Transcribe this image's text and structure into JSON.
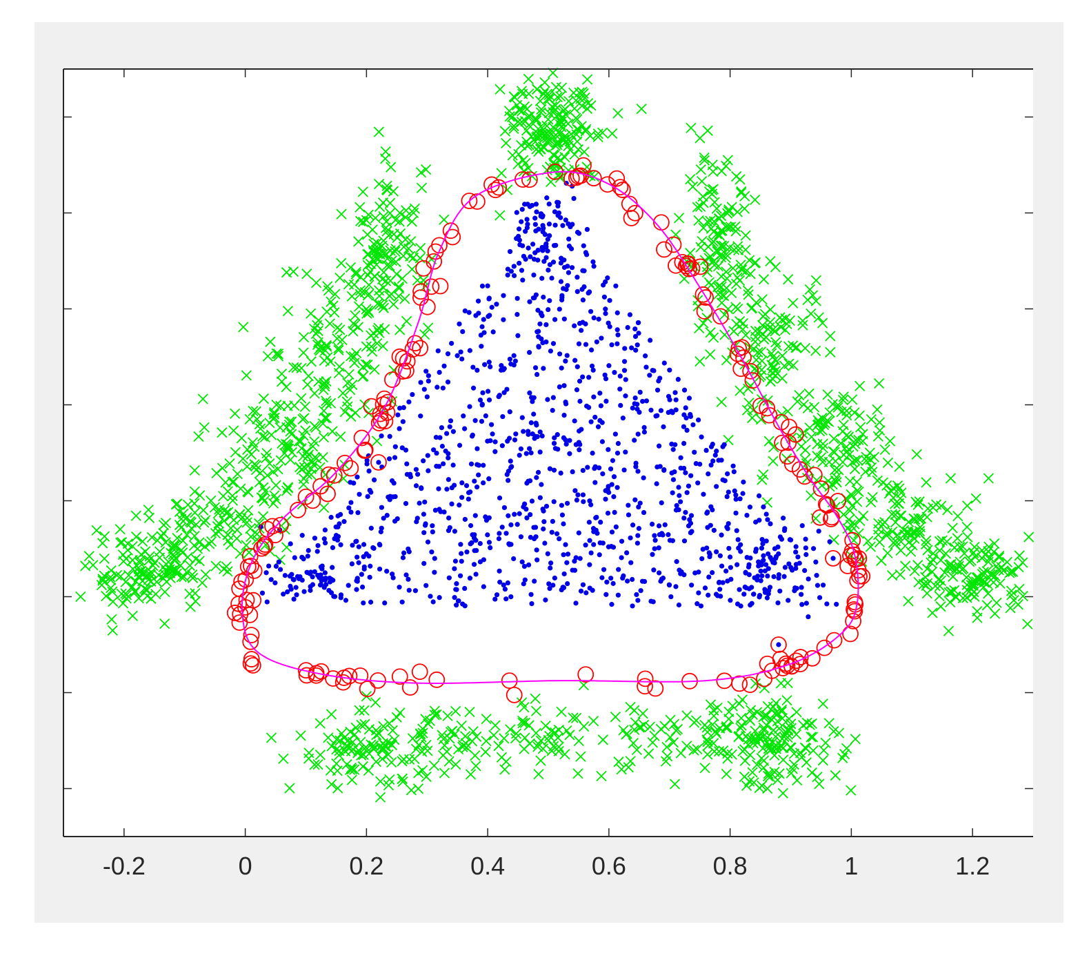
{
  "chart_data": {
    "type": "scatter",
    "title": "",
    "xlabel": "",
    "ylabel": "",
    "xlim": [
      -0.3,
      1.3
    ],
    "ylim": [
      -0.4,
      1.2
    ],
    "x_ticks": [
      -0.2,
      0,
      0.2,
      0.4,
      0.6,
      0.8,
      1,
      1.2
    ],
    "x_tick_labels": [
      "-0.2",
      "0",
      "0.2",
      "0.4",
      "0.6",
      "0.8",
      "1",
      "1.2"
    ],
    "y_ticks": [
      -0.3,
      -0.1,
      0.1,
      0.3,
      0.5,
      0.7,
      0.9,
      1.1
    ],
    "y_tick_labels": [],
    "grid": false,
    "legend": "none",
    "colors": {
      "outlier_marker": "#00e600",
      "inlier_marker": "#0000e6",
      "support_vector_circle": "#ff0000",
      "boundary": "#ff00ff",
      "axes": "#262626",
      "plot_background": "#ffffff",
      "figure_background": "#f0f0f0"
    },
    "series": [
      {
        "marker": "x",
        "color": "#00e600",
        "clusters": [
          {
            "center": [
              0.51,
              1.08
            ],
            "spread": [
              0.045,
              0.06
            ],
            "n": 180
          },
          {
            "center": [
              0.24,
              0.82
            ],
            "spread": [
              0.03,
              0.09
            ],
            "n": 130
          },
          {
            "center": [
              0.15,
              0.62
            ],
            "spread": [
              0.045,
              0.08
            ],
            "n": 110
          },
          {
            "center": [
              0.06,
              0.42
            ],
            "spread": [
              0.05,
              0.07
            ],
            "n": 120
          },
          {
            "center": [
              -0.04,
              0.26
            ],
            "spread": [
              0.055,
              0.05
            ],
            "n": 100
          },
          {
            "center": [
              -0.16,
              0.15
            ],
            "spread": [
              0.05,
              0.04
            ],
            "n": 130
          },
          {
            "center": [
              0.78,
              0.82
            ],
            "spread": [
              0.03,
              0.09
            ],
            "n": 130
          },
          {
            "center": [
              0.87,
              0.62
            ],
            "spread": [
              0.045,
              0.08
            ],
            "n": 110
          },
          {
            "center": [
              0.98,
              0.42
            ],
            "spread": [
              0.05,
              0.07
            ],
            "n": 120
          },
          {
            "center": [
              1.09,
              0.26
            ],
            "spread": [
              0.055,
              0.05
            ],
            "n": 100
          },
          {
            "center": [
              1.2,
              0.14
            ],
            "spread": [
              0.05,
              0.04
            ],
            "n": 130
          },
          {
            "center": [
              0.22,
              -0.22
            ],
            "spread": [
              0.07,
              0.04
            ],
            "n": 130
          },
          {
            "center": [
              0.45,
              -0.2
            ],
            "spread": [
              0.09,
              0.035
            ],
            "n": 70
          },
          {
            "center": [
              0.72,
              -0.2
            ],
            "spread": [
              0.08,
              0.04
            ],
            "n": 80
          },
          {
            "center": [
              0.88,
              -0.2
            ],
            "spread": [
              0.05,
              0.05
            ],
            "n": 130
          }
        ]
      },
      {
        "marker": ".",
        "color": "#0000e6",
        "region": {
          "triangle": [
            [
              0.03,
              0.08
            ],
            [
              0.98,
              0.08
            ],
            [
              0.5,
              0.95
            ]
          ],
          "n": 1000,
          "extra_clusters": [
            {
              "center": [
                0.5,
                0.85
              ],
              "spread": [
                0.03,
                0.06
              ],
              "n": 70
            },
            {
              "center": [
                0.12,
                0.15
              ],
              "spread": [
                0.04,
                0.03
              ],
              "n": 60
            },
            {
              "center": [
                0.87,
                0.17
              ],
              "spread": [
                0.04,
                0.04
              ],
              "n": 60
            }
          ]
        }
      },
      {
        "marker": "o",
        "color": "#ff0000",
        "boundary_points": 190,
        "inner_points": [
          [
            0.22,
            0.38
          ],
          [
            0.97,
            0.18
          ],
          [
            0.88,
            -0.0
          ]
        ]
      }
    ],
    "decision_boundary": {
      "color": "#ff00ff",
      "control_points": [
        [
          0.51,
          0.985
        ],
        [
          0.6,
          0.96
        ],
        [
          0.68,
          0.875
        ],
        [
          0.75,
          0.745
        ],
        [
          0.82,
          0.595
        ],
        [
          0.88,
          0.455
        ],
        [
          0.93,
          0.35
        ],
        [
          0.975,
          0.27
        ],
        [
          1.005,
          0.19
        ],
        [
          1.01,
          0.09
        ],
        [
          0.985,
          0.025
        ],
        [
          0.9,
          -0.04
        ],
        [
          0.76,
          -0.075
        ],
        [
          0.52,
          -0.075
        ],
        [
          0.28,
          -0.08
        ],
        [
          0.12,
          -0.06
        ],
        [
          0.02,
          -0.015
        ],
        [
          -0.005,
          0.07
        ],
        [
          0.01,
          0.17
        ],
        [
          0.06,
          0.26
        ],
        [
          0.15,
          0.36
        ],
        [
          0.23,
          0.495
        ],
        [
          0.285,
          0.67
        ],
        [
          0.32,
          0.82
        ],
        [
          0.38,
          0.935
        ]
      ]
    }
  }
}
